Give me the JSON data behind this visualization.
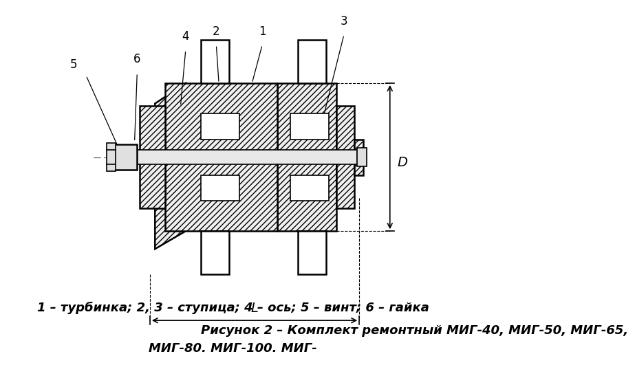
{
  "bg_color": "#ffffff",
  "line_color": "#000000",
  "hatch_color": "#000000",
  "hatch_pattern": "////",
  "center_line_color": "#555555",
  "label_1": "1",
  "label_2": "2",
  "label_3": "3",
  "label_4": "4",
  "label_5": "5",
  "label_6": "6",
  "dim_L": "L",
  "dim_D": "D",
  "caption_line1": "1 – турбинка; 2, 3 – ступица; 4 – ось; 5 – винт; 6 – гайка",
  "caption_line2": "Рисунок 2 – Комплект ремонтный МИГ-40, МИГ-50, МИГ-65,",
  "caption_line3": "МИГ-80. МИГ-100. МИГ-",
  "fontsize_caption": 13,
  "fontsize_label": 12,
  "fontsize_dim": 12
}
